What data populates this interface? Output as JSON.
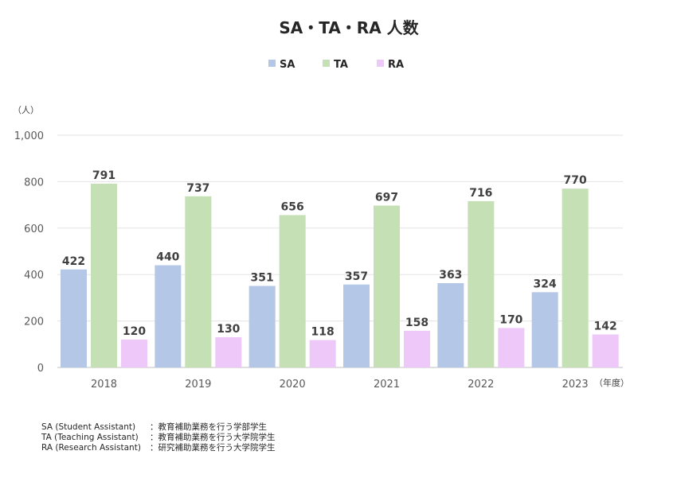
{
  "chart_data": {
    "type": "bar",
    "title": "SA・TA・RA 人数",
    "categories": [
      "2018",
      "2019",
      "2020",
      "2021",
      "2022",
      "2023"
    ],
    "series": [
      {
        "name": "SA",
        "color": "#b4c7e7",
        "values": [
          422,
          440,
          351,
          357,
          363,
          324
        ]
      },
      {
        "name": "TA",
        "color": "#c5e0b4",
        "values": [
          791,
          737,
          656,
          697,
          716,
          770
        ]
      },
      {
        "name": "RA",
        "color": "#eec8f8",
        "values": [
          120,
          130,
          118,
          158,
          170,
          142
        ]
      }
    ],
    "ylabel": "（人）",
    "xlabel": "（年度）",
    "ylim": [
      0,
      1000
    ],
    "yticks": [
      "0",
      "200",
      "400",
      "600",
      "800",
      "1,000"
    ],
    "grid": true,
    "legend_position": "top"
  },
  "notes": [
    {
      "abbr": "SA (Student Assistant)",
      "desc": "：教育補助業務を行う学部学生"
    },
    {
      "abbr": "TA (Teaching Assistant)",
      "desc": "：教育補助業務を行う大学院学生"
    },
    {
      "abbr": "RA (Research Assistant)",
      "desc": "：研究補助業務を行う大学院学生"
    }
  ]
}
